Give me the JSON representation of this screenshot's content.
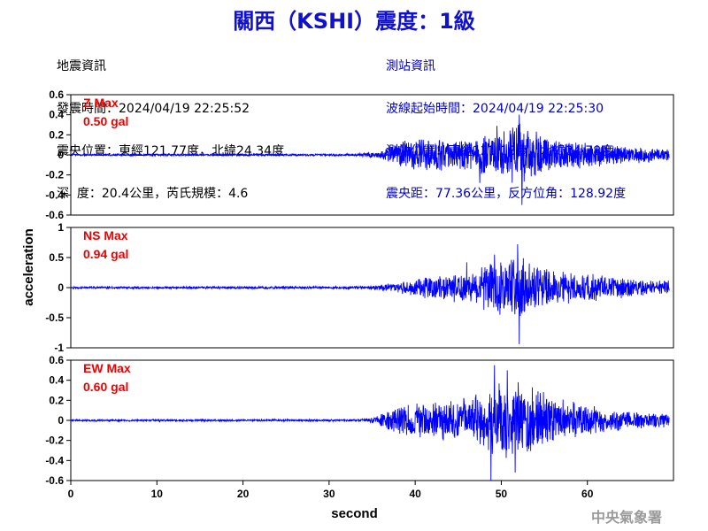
{
  "title": "關西（KSHI）震度：1級",
  "quake_info": {
    "heading": "地震資訊",
    "origin_time": "發震時間：2024/04/19 22:25:52",
    "epicenter": "震央位置：東經121.77度，北緯24.34度",
    "depth_magnitude": "深  度：20.4公里，芮氏規模：4.6"
  },
  "station_info": {
    "heading": "測站資訊",
    "wave_start": "波線起始時間：2024/04/19 22:25:30",
    "location": "測站位置：東經121.18度，北緯24.78度",
    "distance_azimuth": "震央距：77.36公里，反方位角：128.92度"
  },
  "credit": "中央氣象署",
  "chart_data": {
    "type": "line",
    "xlabel": "second",
    "ylabel": "acceleration",
    "xlim": [
      0,
      70
    ],
    "xticks": [
      0,
      10,
      20,
      30,
      40,
      50,
      60
    ],
    "line_color": "#0000ff",
    "panels": [
      {
        "component": "Z",
        "max_label": "Z Max",
        "max_value": "0.50 gal",
        "ylim": [
          -0.6,
          0.6
        ],
        "yticks": [
          -0.6,
          -0.4,
          -0.2,
          0,
          0.2,
          0.4,
          0.6
        ],
        "ytick_labels": [
          "-0.6",
          "-0.4",
          "-0.2",
          "0",
          "0.2",
          "0.4",
          "0.6"
        ],
        "envelope": [
          {
            "t": 0,
            "a": 0.01
          },
          {
            "t": 33,
            "a": 0.012
          },
          {
            "t": 36,
            "a": 0.04
          },
          {
            "t": 38,
            "a": 0.15
          },
          {
            "t": 40,
            "a": 0.17
          },
          {
            "t": 45,
            "a": 0.18
          },
          {
            "t": 48,
            "a": 0.21
          },
          {
            "t": 50,
            "a": 0.25
          },
          {
            "t": 52,
            "a": 0.38
          },
          {
            "t": 53,
            "a": 0.3
          },
          {
            "t": 56,
            "a": 0.17
          },
          {
            "t": 60,
            "a": 0.14
          },
          {
            "t": 65,
            "a": 0.09
          },
          {
            "t": 69.5,
            "a": 0.07
          }
        ],
        "peaks": [
          {
            "t": 52.1,
            "v": 0.4
          },
          {
            "t": 52.4,
            "v": -0.5
          },
          {
            "t": 49.5,
            "v": 0.29
          },
          {
            "t": 47.5,
            "v": -0.28
          }
        ]
      },
      {
        "component": "NS",
        "max_label": "NS Max",
        "max_value": "0.94 gal",
        "ylim": [
          -1,
          1
        ],
        "yticks": [
          -1,
          -0.5,
          0,
          0.5,
          1
        ],
        "ytick_labels": [
          "-1",
          "-0.5",
          "0",
          "0.5",
          "1"
        ],
        "envelope": [
          {
            "t": 0,
            "a": 0.02
          },
          {
            "t": 33,
            "a": 0.025
          },
          {
            "t": 36,
            "a": 0.05
          },
          {
            "t": 38,
            "a": 0.1
          },
          {
            "t": 40,
            "a": 0.18
          },
          {
            "t": 44,
            "a": 0.25
          },
          {
            "t": 47,
            "a": 0.3
          },
          {
            "t": 49,
            "a": 0.45
          },
          {
            "t": 51,
            "a": 0.55
          },
          {
            "t": 52,
            "a": 0.7
          },
          {
            "t": 53,
            "a": 0.45
          },
          {
            "t": 56,
            "a": 0.3
          },
          {
            "t": 60,
            "a": 0.25
          },
          {
            "t": 65,
            "a": 0.16
          },
          {
            "t": 69.5,
            "a": 0.12
          }
        ],
        "peaks": [
          {
            "t": 51.9,
            "v": 0.72
          },
          {
            "t": 52.1,
            "v": -0.94
          },
          {
            "t": 49.2,
            "v": 0.55
          },
          {
            "t": 46.0,
            "v": 0.42
          }
        ]
      },
      {
        "component": "EW",
        "max_label": "EW Max",
        "max_value": "0.60 gal",
        "ylim": [
          -0.6,
          0.6
        ],
        "yticks": [
          -0.6,
          -0.4,
          -0.2,
          0,
          0.2,
          0.4,
          0.6
        ],
        "ytick_labels": [
          "-0.6",
          "-0.4",
          "-0.2",
          "0",
          "0.2",
          "0.4",
          "0.6"
        ],
        "envelope": [
          {
            "t": 0,
            "a": 0.01
          },
          {
            "t": 33,
            "a": 0.012
          },
          {
            "t": 35,
            "a": 0.03
          },
          {
            "t": 37,
            "a": 0.12
          },
          {
            "t": 40,
            "a": 0.2
          },
          {
            "t": 44,
            "a": 0.22
          },
          {
            "t": 47,
            "a": 0.28
          },
          {
            "t": 49,
            "a": 0.4
          },
          {
            "t": 51,
            "a": 0.42
          },
          {
            "t": 53,
            "a": 0.36
          },
          {
            "t": 56,
            "a": 0.25
          },
          {
            "t": 60,
            "a": 0.16
          },
          {
            "t": 65,
            "a": 0.09
          },
          {
            "t": 69.5,
            "a": 0.08
          }
        ],
        "peaks": [
          {
            "t": 48.8,
            "v": -0.6
          },
          {
            "t": 49.2,
            "v": 0.55
          },
          {
            "t": 50.7,
            "v": 0.5
          },
          {
            "t": 51.6,
            "v": -0.52
          }
        ]
      }
    ]
  }
}
